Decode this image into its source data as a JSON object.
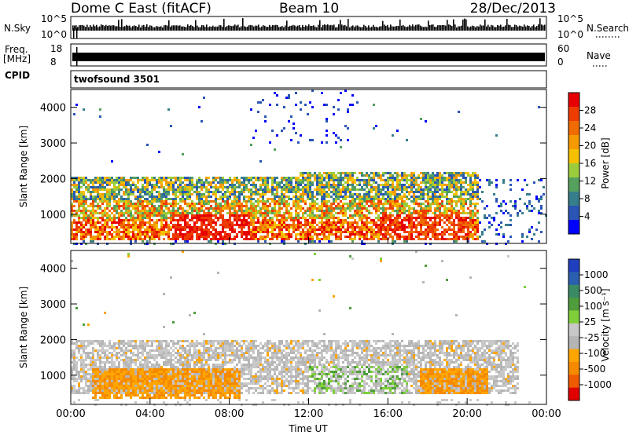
{
  "header": {
    "station": "Dome C East (fitACF)",
    "beam": "Beam 10",
    "date": "28/Dec/2013"
  },
  "strips": {
    "nsky_label": "N.Sky",
    "nsky_top": "10^5",
    "nsky_bottom": "10^0",
    "nsearch_label": "N.Search",
    "nsearch_top": "10^5",
    "nsearch_bottom": "10^0",
    "freq_label": "Freq.",
    "freq_unit": "[MHz]",
    "freq_top": "18",
    "freq_bottom": "8",
    "nave_label": "Nave",
    "nave_top": "60",
    "nave_bottom": "0",
    "cpid_label": "CPID",
    "cpid_value": "twofsound 3501"
  },
  "colors": {
    "power": [
      "#0000ff",
      "#2a55b5",
      "#377e8c",
      "#56a05e",
      "#9bcc3c",
      "#f5c000",
      "#f59a00",
      "#f06b00",
      "#ee3c00",
      "#e80000"
    ],
    "velocity": [
      "#1f3fbf",
      "#2b5fb0",
      "#3a8a66",
      "#4f9d3c",
      "#7fcf3a",
      "#c8c8c8",
      "#b5b5b5",
      "#ffa500",
      "#f58a00",
      "#f05a00",
      "#e10000"
    ]
  },
  "chart_data": [
    {
      "type": "heatmap",
      "panel": "power",
      "ylabel": "Slant Range [km]",
      "xlabel": "",
      "ylim": [
        180,
        4500
      ],
      "yticks": [
        1000,
        2000,
        3000,
        4000
      ],
      "colorbar": {
        "label": "Power [dB]",
        "ticks": [
          "4",
          "8",
          "12",
          "16",
          "20",
          "24",
          "28"
        ],
        "range": [
          0,
          30
        ]
      },
      "bands": [
        {
          "t_start": 0.0,
          "t_end": 12.0,
          "r_low": 300,
          "r_high": 2100,
          "level": "strong"
        },
        {
          "t_start": 11.5,
          "t_end": 20.5,
          "r_low": 300,
          "r_high": 2200,
          "level": "strong"
        },
        {
          "t_start": 20.5,
          "t_end": 24.0,
          "r_low": 200,
          "r_high": 2000,
          "level": "weak"
        },
        {
          "t_start": 9.0,
          "t_end": 14.5,
          "r_low": 3000,
          "r_high": 4500,
          "level": "weak"
        }
      ]
    },
    {
      "type": "heatmap",
      "panel": "velocity",
      "ylabel": "Slant Range [km]",
      "xlabel": "Time UT",
      "ylim": [
        180,
        4500
      ],
      "yticks": [
        1000,
        2000,
        3000,
        4000
      ],
      "x_tick_labels": [
        "00:00",
        "04:00",
        "08:00",
        "12:00",
        "16:00",
        "20:00",
        "00:00"
      ],
      "colorbar": {
        "label": "Velocity [m s⁻¹]",
        "ticks": [
          "1000",
          "500",
          "100",
          "25",
          "-25",
          "-100",
          "-500",
          "-1000"
        ],
        "range": [
          -1000,
          1000
        ]
      },
      "bands": [
        {
          "t_start": 0.0,
          "t_end": 22.5,
          "r_low": 500,
          "r_high": 2000,
          "level": "ground-scatter"
        },
        {
          "t_start": 1.0,
          "t_end": 8.5,
          "r_low": 400,
          "r_high": 1200,
          "level": "negative"
        },
        {
          "t_start": 17.5,
          "t_end": 21.0,
          "r_low": 500,
          "r_high": 1200,
          "level": "negative"
        }
      ]
    }
  ],
  "x_tick_labels": [
    "00:00",
    "04:00",
    "08:00",
    "12:00",
    "16:00",
    "20:00",
    "00:00"
  ],
  "xlabel": "Time UT"
}
